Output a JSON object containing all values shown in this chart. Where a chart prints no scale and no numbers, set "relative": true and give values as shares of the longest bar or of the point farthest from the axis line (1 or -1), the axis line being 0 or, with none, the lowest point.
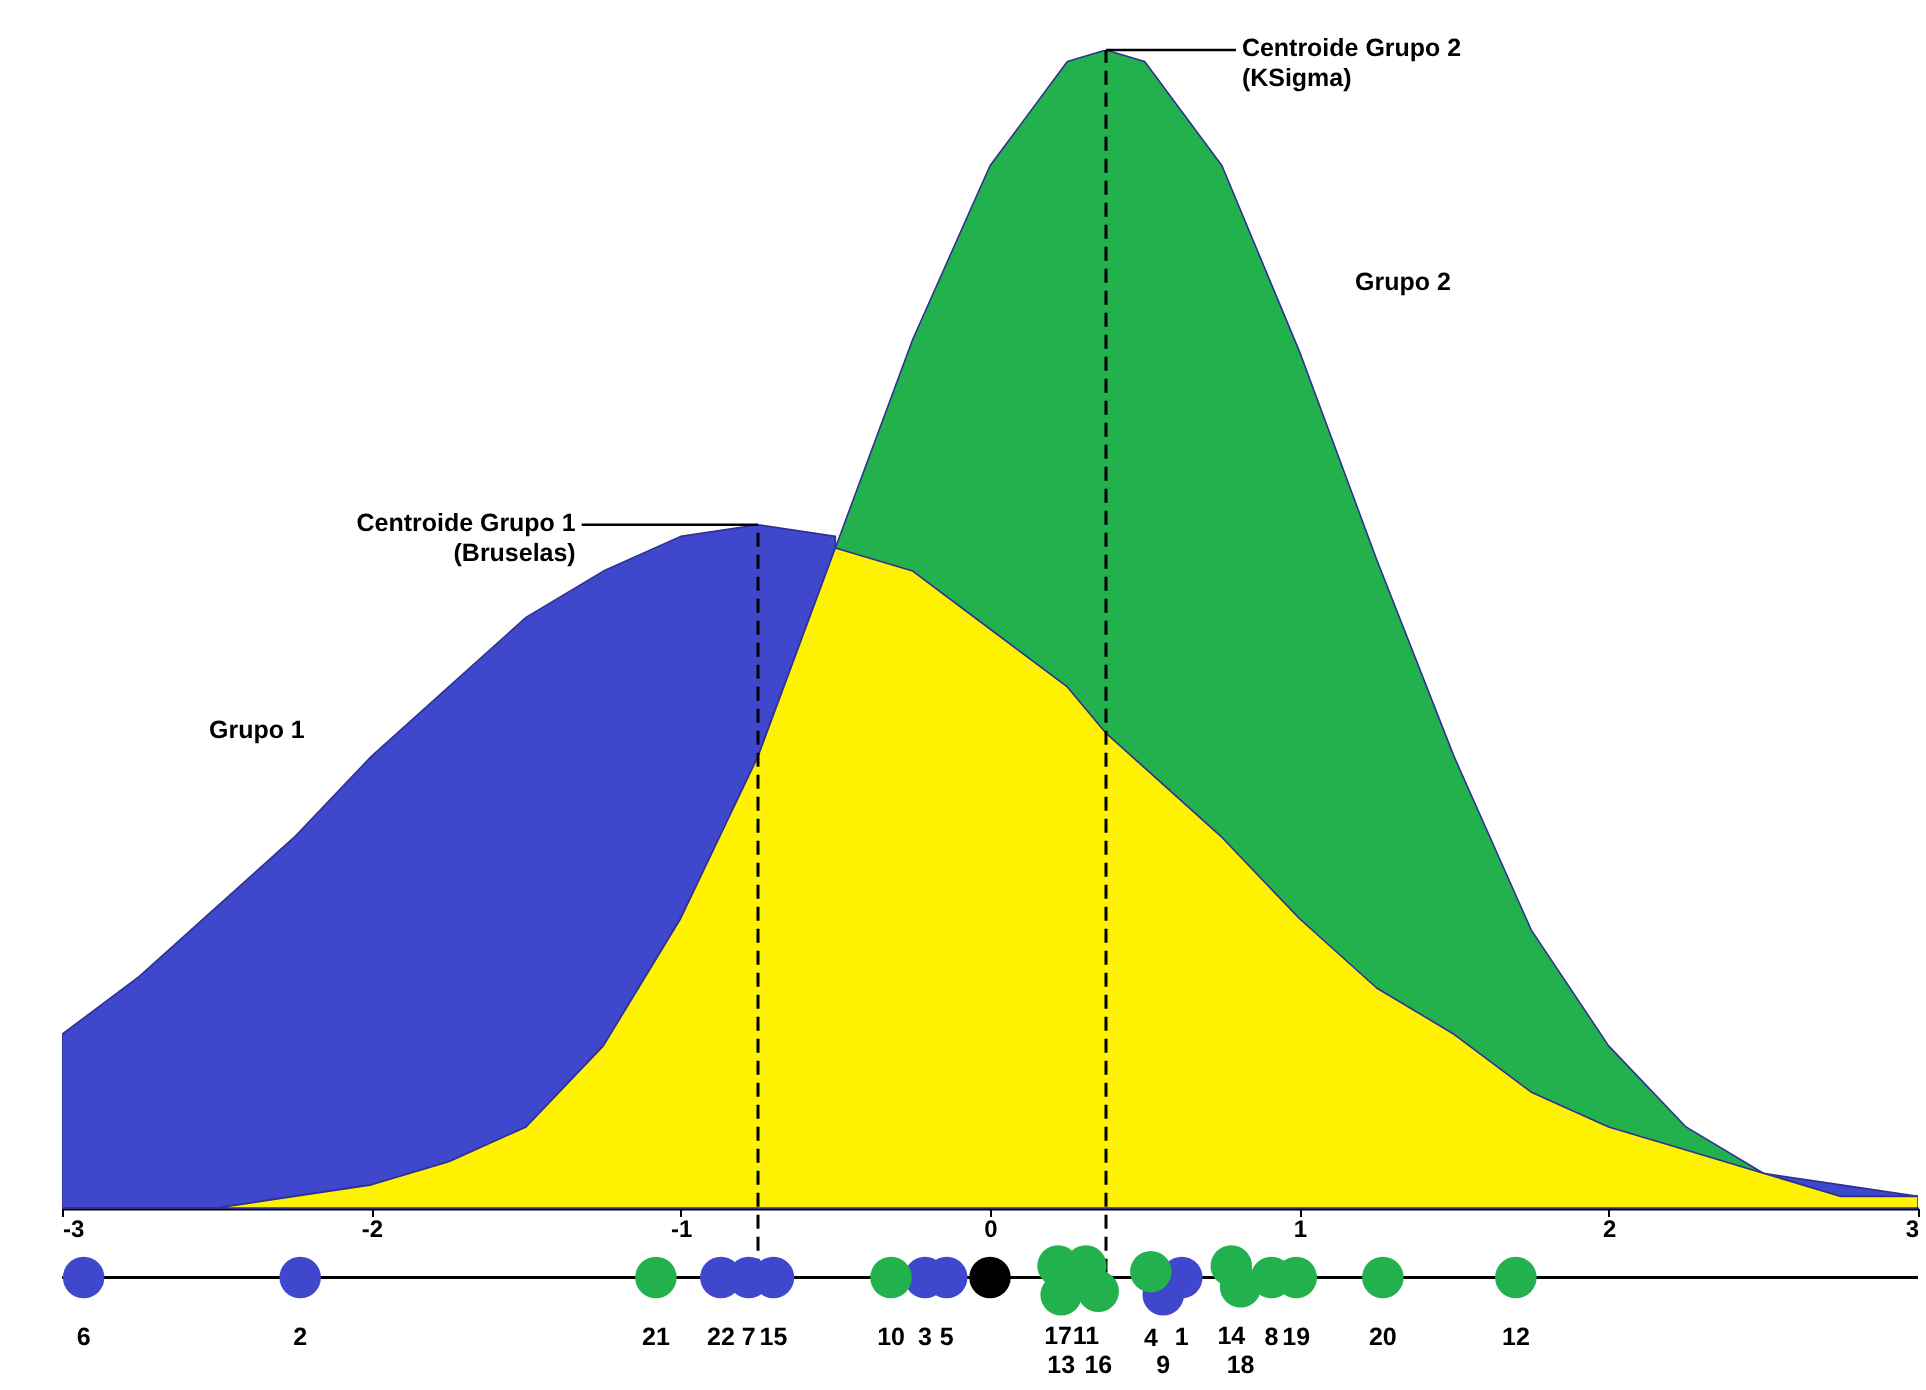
{
  "chart_data": {
    "type": "area",
    "relative": true,
    "xlim": [
      -3,
      3
    ],
    "xticks": [
      -3,
      -2,
      -1,
      0,
      1,
      2,
      3
    ],
    "x": [
      -3,
      -2.75,
      -2.5,
      -2.25,
      -2,
      -1.75,
      -1.5,
      -1.25,
      -1,
      -0.75,
      -0.5,
      -0.25,
      0,
      0.25,
      0.375,
      0.5,
      0.75,
      1,
      1.25,
      1.5,
      1.75,
      2,
      2.25,
      2.5,
      2.75,
      3
    ],
    "series": [
      {
        "name": "Grupo 1",
        "color": "#3f48cc",
        "values": [
          0.15,
          0.2,
          0.26,
          0.32,
          0.39,
          0.45,
          0.51,
          0.55,
          0.58,
          0.59,
          0.58,
          null,
          null,
          null,
          null,
          null,
          null,
          null,
          null,
          null,
          null,
          null,
          null,
          0.03,
          0.02,
          0.01
        ]
      },
      {
        "name": "Grupo 2",
        "color": "#22b14c",
        "values": [
          0,
          0,
          0,
          0.01,
          0.02,
          0.04,
          0.07,
          0.14,
          0.25,
          0.39,
          0.57,
          0.75,
          0.9,
          0.99,
          1,
          0.99,
          0.9,
          0.74,
          0.56,
          0.39,
          0.24,
          0.14,
          0.07,
          0.03,
          0.01,
          0.01
        ]
      },
      {
        "color": "#fff200",
        "values": [
          0,
          0,
          0,
          0.01,
          0.02,
          0.04,
          0.07,
          0.14,
          0.25,
          0.39,
          0.57,
          0.55,
          0.5,
          0.45,
          0.41,
          0.38,
          0.32,
          0.25,
          0.19,
          0.15,
          0.1,
          0.07,
          0.05,
          0.03,
          0.01,
          0.01
        ]
      },
      {
        "type": "scatter",
        "marker": "circle",
        "color": "#3f48cc",
        "x": [
          -2.93,
          -2.23,
          -0.87,
          -0.78,
          -0.7,
          -0.21,
          -0.14,
          0.56,
          0.62
        ],
        "values": [
          -0.06,
          -0.06,
          -0.06,
          -0.06,
          -0.06,
          -0.06,
          -0.06,
          -0.075,
          -0.06
        ]
      },
      {
        "type": "scatter",
        "marker": "circle",
        "color": "#22b14c",
        "x": [
          -1.08,
          -0.32,
          0.22,
          0.23,
          0.31,
          0.35,
          0.52,
          0.78,
          0.81,
          0.91,
          0.99,
          1.27,
          1.7
        ],
        "values": [
          -0.06,
          -0.06,
          -0.05,
          -0.075,
          -0.05,
          -0.072,
          -0.055,
          -0.05,
          -0.068,
          -0.06,
          -0.06,
          -0.06,
          -0.06
        ]
      },
      {
        "type": "scatter",
        "marker": "circle",
        "color": "#000000",
        "x": [
          0
        ],
        "values": [
          -0.06
        ]
      }
    ],
    "ref_lines": [
      {
        "axis": "x",
        "value": -0.75,
        "label": "Centroide Grupo 1\n(Bruselas)",
        "line_style": "dashed"
      },
      {
        "axis": "x",
        "value": 0.375,
        "label": "Centroide Grupo 2\n(KSigma)",
        "line_style": "dashed"
      },
      {
        "axis": "y",
        "value": -0.06
      }
    ],
    "annotations": [
      {
        "text": "6",
        "x": -2.93,
        "y": -0.06
      },
      {
        "text": "2",
        "x": -2.23,
        "y": -0.06
      },
      {
        "text": "22",
        "x": -0.87,
        "y": -0.06
      },
      {
        "text": "7",
        "x": -0.78,
        "y": -0.06
      },
      {
        "text": "15",
        "x": -0.7,
        "y": -0.06
      },
      {
        "text": "3",
        "x": -0.21,
        "y": -0.06
      },
      {
        "text": "5",
        "x": -0.14,
        "y": -0.06
      },
      {
        "text": "9",
        "x": 0.56,
        "y": -0.075
      },
      {
        "text": "1",
        "x": 0.62,
        "y": -0.06
      },
      {
        "text": "21",
        "x": -1.08,
        "y": -0.06
      },
      {
        "text": "10",
        "x": -0.32,
        "y": -0.06
      },
      {
        "text": "17",
        "x": 0.22,
        "y": -0.05
      },
      {
        "text": "13",
        "x": 0.23,
        "y": -0.075
      },
      {
        "text": "11",
        "x": 0.31,
        "y": -0.05
      },
      {
        "text": "16",
        "x": 0.35,
        "y": -0.072
      },
      {
        "text": "4",
        "x": 0.52,
        "y": -0.055
      },
      {
        "text": "14",
        "x": 0.78,
        "y": -0.05
      },
      {
        "text": "18",
        "x": 0.81,
        "y": -0.068
      },
      {
        "text": "8",
        "x": 0.91,
        "y": -0.06
      },
      {
        "text": "19",
        "x": 0.99,
        "y": -0.06
      },
      {
        "text": "20",
        "x": 1.27,
        "y": -0.06
      },
      {
        "text": "12",
        "x": 1.7,
        "y": -0.06
      }
    ]
  }
}
